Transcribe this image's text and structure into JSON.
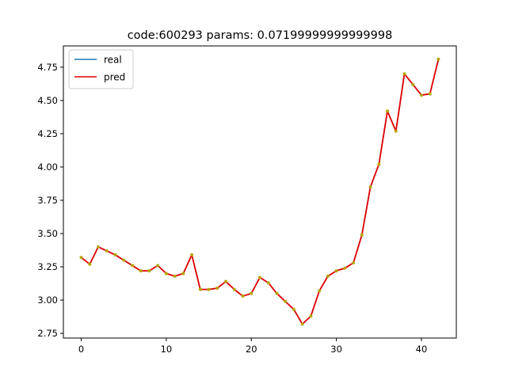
{
  "chart_data": {
    "type": "line",
    "title": "code:600293 params: 0.07199999999999998",
    "xlabel": "",
    "ylabel": "",
    "xlim": [
      -2.1,
      44.1
    ],
    "ylim": [
      2.715,
      4.91
    ],
    "x_ticks": [
      0,
      10,
      20,
      30,
      40
    ],
    "y_ticks": [
      2.75,
      3.0,
      3.25,
      3.5,
      3.75,
      4.0,
      4.25,
      4.5,
      4.75
    ],
    "y_tick_labels": [
      "2.75",
      "3.00",
      "3.25",
      "3.50",
      "3.75",
      "4.00",
      "4.25",
      "4.50",
      "4.75"
    ],
    "legend_position": "top-left",
    "grid": false,
    "x": [
      0,
      1,
      2,
      3,
      4,
      5,
      6,
      7,
      8,
      9,
      10,
      11,
      12,
      13,
      14,
      15,
      16,
      17,
      18,
      19,
      20,
      21,
      22,
      23,
      24,
      25,
      26,
      27,
      28,
      29,
      30,
      31,
      32,
      33,
      34,
      35,
      36,
      37,
      38,
      39,
      40,
      41,
      42
    ],
    "series": [
      {
        "name": "real",
        "color": "#1f77b4",
        "values": [
          3.32,
          3.27,
          3.4,
          3.37,
          3.34,
          3.3,
          3.26,
          3.22,
          3.22,
          3.26,
          3.2,
          3.18,
          3.2,
          3.34,
          3.08,
          3.08,
          3.09,
          3.14,
          3.08,
          3.03,
          3.05,
          3.17,
          3.13,
          3.05,
          2.99,
          2.93,
          2.82,
          2.88,
          3.07,
          3.18,
          3.22,
          3.24,
          3.28,
          3.49,
          3.85,
          4.02,
          4.42,
          4.27,
          4.7,
          4.62,
          4.54,
          4.55,
          4.81
        ]
      },
      {
        "name": "pred",
        "color": "#e00000",
        "values": [
          3.32,
          3.27,
          3.4,
          3.37,
          3.34,
          3.3,
          3.26,
          3.22,
          3.22,
          3.26,
          3.2,
          3.18,
          3.2,
          3.34,
          3.08,
          3.08,
          3.09,
          3.14,
          3.08,
          3.03,
          3.05,
          3.17,
          3.13,
          3.05,
          2.99,
          2.93,
          2.82,
          2.88,
          3.07,
          3.18,
          3.22,
          3.24,
          3.28,
          3.49,
          3.85,
          4.02,
          4.42,
          4.27,
          4.7,
          4.62,
          4.54,
          4.55,
          4.81
        ]
      }
    ],
    "marker_color": "#b5a400"
  }
}
